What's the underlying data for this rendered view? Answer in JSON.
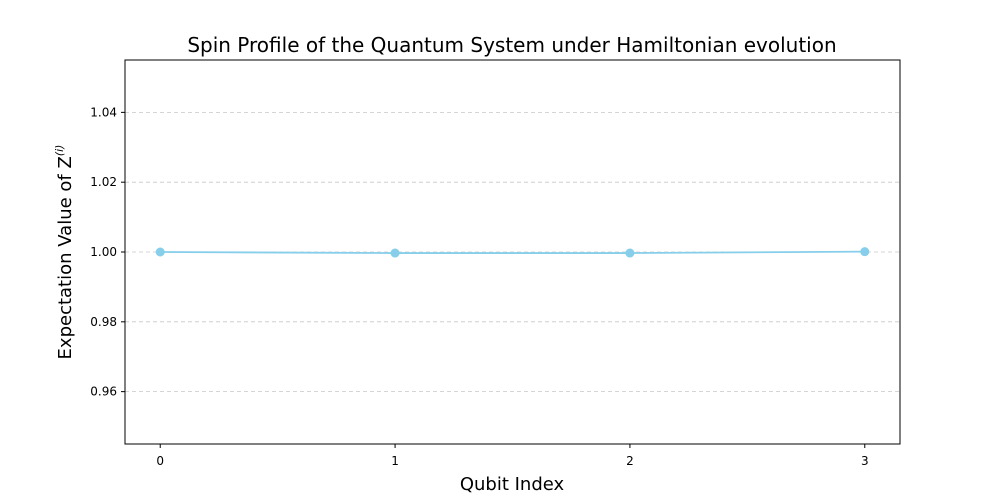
{
  "chart_data": {
    "type": "line",
    "title": "Spin Profile of the Quantum System under Hamiltonian evolution",
    "xlabel": "Qubit Index",
    "ylabel_main": "Expectation Value of Z",
    "ylabel_sup": "(i)",
    "x": [
      0,
      1,
      2,
      3
    ],
    "series": [
      {
        "values": [
          1.0,
          0.9997,
          0.9997,
          1.0001
        ],
        "color": "#87ceeb",
        "marker": "circle"
      }
    ],
    "xticks": [
      0,
      1,
      2,
      3
    ],
    "yticks": [
      0.96,
      0.98,
      1.0,
      1.02,
      1.04
    ],
    "ytick_labels": [
      "0.96",
      "0.98",
      "1.00",
      "1.02",
      "1.04"
    ],
    "xtick_labels": [
      "0",
      "1",
      "2",
      "3"
    ],
    "xlim": [
      -0.15,
      3.15
    ],
    "ylim": [
      0.945,
      1.055
    ],
    "grid_y": true
  }
}
